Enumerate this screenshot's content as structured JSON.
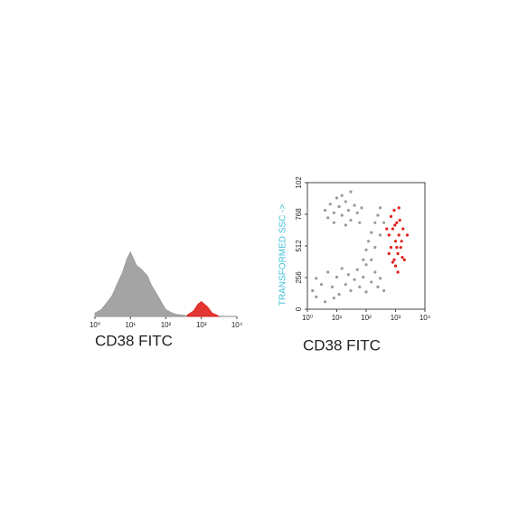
{
  "chart_data": [
    {
      "type": "histogram_area",
      "xlabel": "CD38 FITC",
      "log_x": true,
      "xlim": [
        1,
        10000
      ],
      "xticks": [
        {
          "value": 1,
          "label": "10⁰"
        },
        {
          "value": 10,
          "label": "10¹"
        },
        {
          "value": 100,
          "label": "10²"
        },
        {
          "value": 1000,
          "label": "10³"
        },
        {
          "value": 10000,
          "label": "10⁴"
        }
      ],
      "ylim": [
        0,
        100
      ],
      "series": [
        {
          "color": "#9a9a9a",
          "x": [
            1,
            1.5,
            2,
            3,
            4,
            6,
            8,
            10,
            15,
            20,
            30,
            40,
            60,
            80,
            100,
            150,
            200,
            300,
            400,
            1000,
            10000
          ],
          "values": [
            5,
            10,
            18,
            30,
            45,
            65,
            85,
            95,
            75,
            70,
            60,
            45,
            30,
            18,
            10,
            5,
            3,
            2,
            1,
            1,
            0
          ]
        },
        {
          "color": "#e0201c",
          "x": [
            400,
            600,
            800,
            1000,
            1500,
            2000,
            3000
          ],
          "values": [
            2,
            8,
            18,
            22,
            14,
            5,
            1
          ]
        }
      ]
    },
    {
      "type": "scatter",
      "xlabel": "CD38 FITC",
      "ylabel": "TRANSFORMED SSC ->",
      "ylabel_color": "#3cc0d8",
      "log_x": true,
      "xlim": [
        1,
        10000
      ],
      "xticks": [
        {
          "value": 1,
          "label": "10⁰"
        },
        {
          "value": 10,
          "label": "10¹"
        },
        {
          "value": 100,
          "label": "10²"
        },
        {
          "value": 1000,
          "label": "10³"
        },
        {
          "value": 10000,
          "label": "10⁴"
        }
      ],
      "ylim": [
        0,
        1024
      ],
      "yticks": [
        0,
        256,
        512,
        768,
        {
          "value": 1024,
          "label": "102"
        }
      ],
      "series": [
        {
          "color": "#9a9a9a",
          "x": [
            4,
            6,
            8,
            10,
            12,
            15,
            20,
            25,
            30,
            40,
            50,
            8,
            5,
            15,
            30,
            60,
            70,
            20,
            1.5,
            2,
            3,
            5,
            7,
            10,
            12,
            15,
            20,
            25,
            30,
            40,
            50,
            60,
            80,
            100,
            150,
            200,
            250,
            300,
            2,
            4,
            8,
            400,
            80,
            100,
            120,
            150,
            200,
            250,
            150,
            200,
            300,
            100,
            300,
            400
          ],
          "values": [
            800,
            850,
            780,
            900,
            830,
            760,
            870,
            800,
            720,
            840,
            780,
            700,
            740,
            920,
            950,
            700,
            820,
            680,
            150,
            250,
            200,
            300,
            180,
            260,
            120,
            330,
            200,
            280,
            150,
            240,
            320,
            180,
            260,
            140,
            220,
            300,
            180,
            250,
            100,
            60,
            90,
            150,
            400,
            480,
            550,
            620,
            700,
            760,
            400,
            500,
            600,
            360,
            820,
            700
          ]
        },
        {
          "color": "#e0201c",
          "x": [
            600,
            700,
            800,
            900,
            1000,
            1100,
            1200,
            1300,
            1500,
            1800,
            2000,
            700,
            900,
            1000,
            1200,
            1400,
            600,
            800,
            1600,
            2500,
            500,
            1100,
            1300,
            950,
            1700
          ],
          "values": [
            600,
            500,
            650,
            400,
            550,
            700,
            450,
            600,
            500,
            650,
            400,
            750,
            800,
            350,
            300,
            720,
            450,
            380,
            550,
            600,
            650,
            500,
            820,
            680,
            420
          ]
        }
      ]
    }
  ]
}
